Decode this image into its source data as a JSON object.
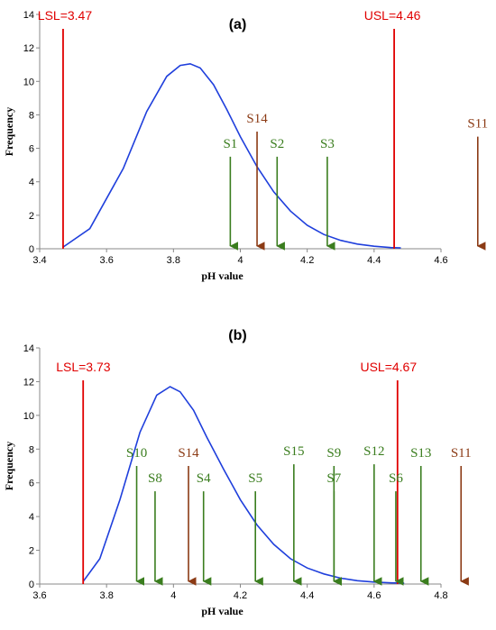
{
  "chart_data": [
    {
      "type": "line",
      "panel_label": "(a)",
      "xlabel": "pH value",
      "ylabel": "Frequency",
      "xlim": [
        3.4,
        4.6
      ],
      "ylim": [
        0,
        14
      ],
      "xticks": [
        "3.4",
        "3.6",
        "3.8",
        "4",
        "4.2",
        "4.4",
        "4.6"
      ],
      "yticks": [
        "0",
        "2",
        "4",
        "6",
        "8",
        "10",
        "12",
        "14"
      ],
      "curve": {
        "color": "#1f3fdc",
        "x": [
          3.47,
          3.55,
          3.65,
          3.72,
          3.78,
          3.82,
          3.85,
          3.88,
          3.92,
          3.96,
          4.0,
          4.05,
          4.1,
          4.15,
          4.2,
          4.25,
          4.3,
          4.35,
          4.4,
          4.45,
          4.48
        ],
        "y": [
          0.1,
          1.2,
          4.8,
          8.2,
          10.3,
          10.95,
          11.05,
          10.8,
          9.8,
          8.3,
          6.7,
          4.9,
          3.4,
          2.25,
          1.4,
          0.85,
          0.5,
          0.28,
          0.15,
          0.07,
          0.05
        ]
      },
      "limits": [
        {
          "label": "LSL=3.47",
          "x": 3.47,
          "color": "#e00000"
        },
        {
          "label": "USL=4.46",
          "x": 4.46,
          "color": "#e00000"
        }
      ],
      "samples": [
        {
          "label": "S1",
          "x": 3.97,
          "top": 5.5,
          "color": "#3a7d1e"
        },
        {
          "label": "S14",
          "x": 4.05,
          "top": 7.0,
          "color": "#8b3a14"
        },
        {
          "label": "S2",
          "x": 4.11,
          "top": 5.5,
          "color": "#3a7d1e"
        },
        {
          "label": "S3",
          "x": 4.26,
          "top": 5.5,
          "color": "#3a7d1e"
        },
        {
          "label": "S11",
          "x": 4.71,
          "top": 6.7,
          "color": "#8b3a14"
        }
      ]
    },
    {
      "type": "line",
      "panel_label": "(b)",
      "xlabel": "pH value",
      "ylabel": "Frequency",
      "xlim": [
        3.6,
        4.8
      ],
      "ylim": [
        0,
        14
      ],
      "xticks": [
        "3.6",
        "3.8",
        "4",
        "4.2",
        "4.4",
        "4.6",
        "4.8"
      ],
      "yticks": [
        "0",
        "2",
        "4",
        "6",
        "8",
        "10",
        "12",
        "14"
      ],
      "curve": {
        "color": "#1f3fdc",
        "x": [
          3.73,
          3.78,
          3.84,
          3.9,
          3.95,
          3.99,
          4.02,
          4.06,
          4.1,
          4.15,
          4.2,
          4.25,
          4.3,
          4.35,
          4.4,
          4.45,
          4.5,
          4.55,
          4.6,
          4.65,
          4.69
        ],
        "y": [
          0.15,
          1.5,
          5.0,
          9.0,
          11.2,
          11.7,
          11.4,
          10.3,
          8.7,
          6.8,
          5.0,
          3.5,
          2.35,
          1.5,
          0.95,
          0.6,
          0.35,
          0.2,
          0.12,
          0.07,
          0.05
        ]
      },
      "limits": [
        {
          "label": "LSL=3.73",
          "x": 3.73,
          "color": "#e00000"
        },
        {
          "label": "USL=4.67",
          "x": 4.67,
          "color": "#e00000"
        }
      ],
      "samples": [
        {
          "label": "S10",
          "x": 3.89,
          "top": 7.0,
          "color": "#3a7d1e"
        },
        {
          "label": "S8",
          "x": 3.945,
          "top": 5.5,
          "color": "#3a7d1e"
        },
        {
          "label": "S14",
          "x": 4.045,
          "top": 7.0,
          "color": "#8b3a14"
        },
        {
          "label": "S4",
          "x": 4.09,
          "top": 5.5,
          "color": "#3a7d1e"
        },
        {
          "label": "S5",
          "x": 4.245,
          "top": 5.5,
          "color": "#3a7d1e"
        },
        {
          "label": "S15",
          "x": 4.36,
          "top": 7.1,
          "color": "#3a7d1e"
        },
        {
          "label": "S9",
          "x": 4.48,
          "top": 7.0,
          "color": "#3a7d1e"
        },
        {
          "label": "S7",
          "x": 4.48,
          "top": 5.5,
          "color": "#3a7d1e"
        },
        {
          "label": "S12",
          "x": 4.6,
          "top": 7.1,
          "color": "#3a7d1e"
        },
        {
          "label": "S6",
          "x": 4.665,
          "top": 5.5,
          "color": "#3a7d1e"
        },
        {
          "label": "S13",
          "x": 4.74,
          "top": 7.0,
          "color": "#3a7d1e"
        },
        {
          "label": "S11",
          "x": 4.86,
          "top": 7.0,
          "color": "#8b3a14"
        }
      ]
    }
  ]
}
